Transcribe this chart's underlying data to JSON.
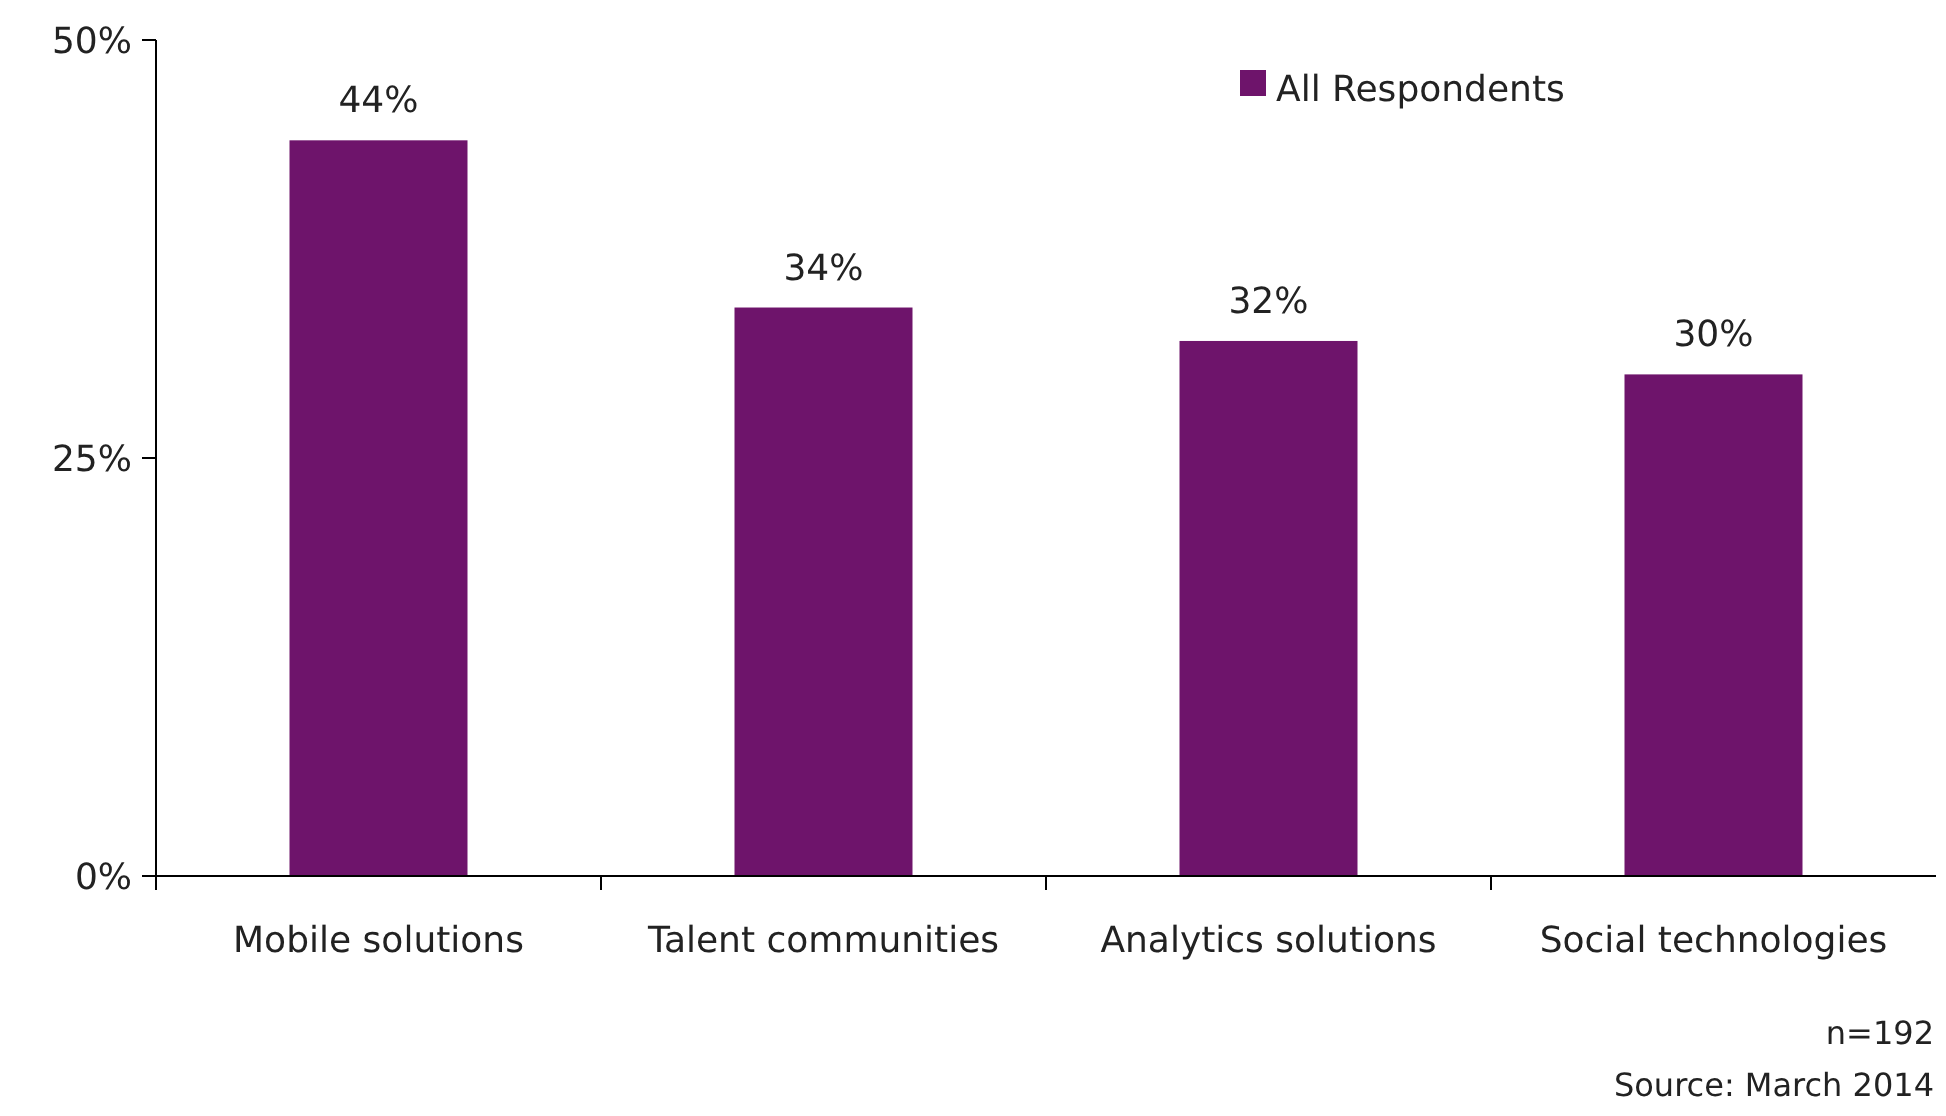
{
  "chart_data": {
    "type": "bar",
    "categories": [
      "Mobile solutions",
      "Talent communities",
      "Analytics solutions",
      "Social technologies"
    ],
    "series": [
      {
        "name": "All Respondents",
        "color": "#6e146b",
        "values": [
          44,
          34,
          32,
          30
        ],
        "value_labels": [
          "44%",
          "34%",
          "32%",
          "30%"
        ]
      }
    ],
    "ylim": [
      0,
      50
    ],
    "yticks": [
      {
        "value": 0,
        "label": "0%"
      },
      {
        "value": 25,
        "label": "25%"
      },
      {
        "value": 50,
        "label": "50%"
      }
    ],
    "legend": "top right",
    "grid": false,
    "annotations": [
      "n=192",
      "Source: March 2014"
    ]
  }
}
